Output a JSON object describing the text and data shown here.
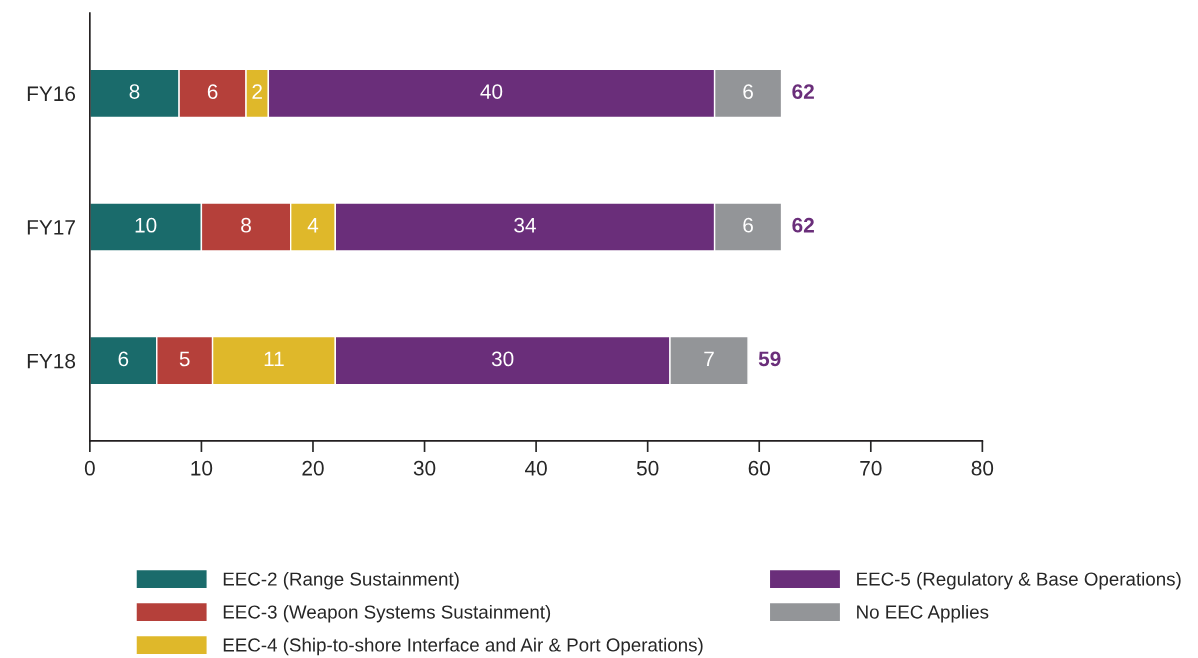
{
  "chart_data": {
    "type": "bar",
    "orientation": "horizontal",
    "stacked": true,
    "categories": [
      "FY16",
      "FY17",
      "FY18"
    ],
    "series": [
      {
        "name": "EEC-2 (Range Sustainment)",
        "color": "#1a6b6b",
        "values": [
          8,
          10,
          6
        ]
      },
      {
        "name": "EEC-3 (Weapon Systems Sustainment)",
        "color": "#b5403a",
        "values": [
          6,
          8,
          5
        ]
      },
      {
        "name": "EEC-4 (Ship-to-shore Interface and Air & Port Operations)",
        "color": "#dfb82a",
        "values": [
          2,
          4,
          11
        ]
      },
      {
        "name": "EEC-5 (Regulatory & Base Operations)",
        "color": "#6a2e7a",
        "values": [
          40,
          34,
          30
        ]
      },
      {
        "name": "No EEC Applies",
        "color": "#939598",
        "values": [
          6,
          6,
          7
        ]
      }
    ],
    "totals": [
      "62",
      "62",
      "59"
    ],
    "data_labels": true,
    "xlim": [
      0,
      80
    ],
    "xticks": [
      0,
      10,
      20,
      30,
      40,
      50,
      60,
      70,
      80
    ],
    "grid": false,
    "legend": "bottom"
  }
}
